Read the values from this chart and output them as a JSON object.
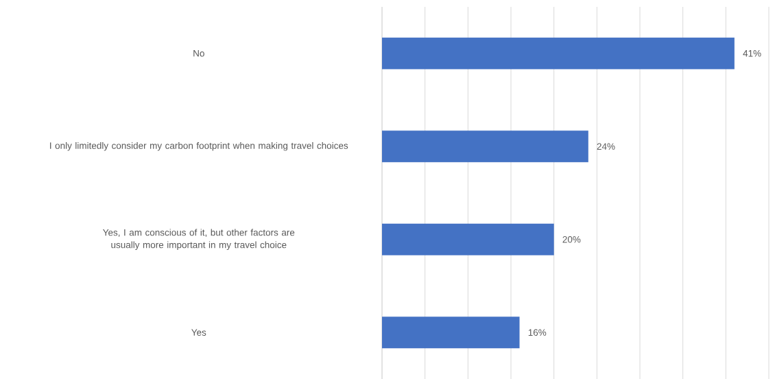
{
  "chart_data": {
    "type": "bar",
    "orientation": "horizontal",
    "categories": [
      "No",
      "I only limitedly consider my carbon footprint when making travel choices",
      "Yes, I am conscious of it, but other factors are usually more important in my travel choice",
      "Yes"
    ],
    "values": [
      41,
      24,
      20,
      16
    ],
    "value_labels": [
      "41%",
      "24%",
      "20%",
      "16%"
    ],
    "color": "#4472c4",
    "xlim": [
      0,
      45
    ],
    "xticks": [
      {
        "value": 0,
        "label": null
      },
      {
        "value": 5,
        "label": null
      },
      {
        "value": 10,
        "label": null
      },
      {
        "value": 15,
        "label": null
      },
      {
        "value": 20,
        "label": null
      },
      {
        "value": 25,
        "label": null
      },
      {
        "value": 30,
        "label": null
      },
      {
        "value": 35,
        "label": null
      },
      {
        "value": 40,
        "label": null
      },
      {
        "value": 45,
        "label": null
      }
    ],
    "grid": "x",
    "tick_labels": "y"
  }
}
